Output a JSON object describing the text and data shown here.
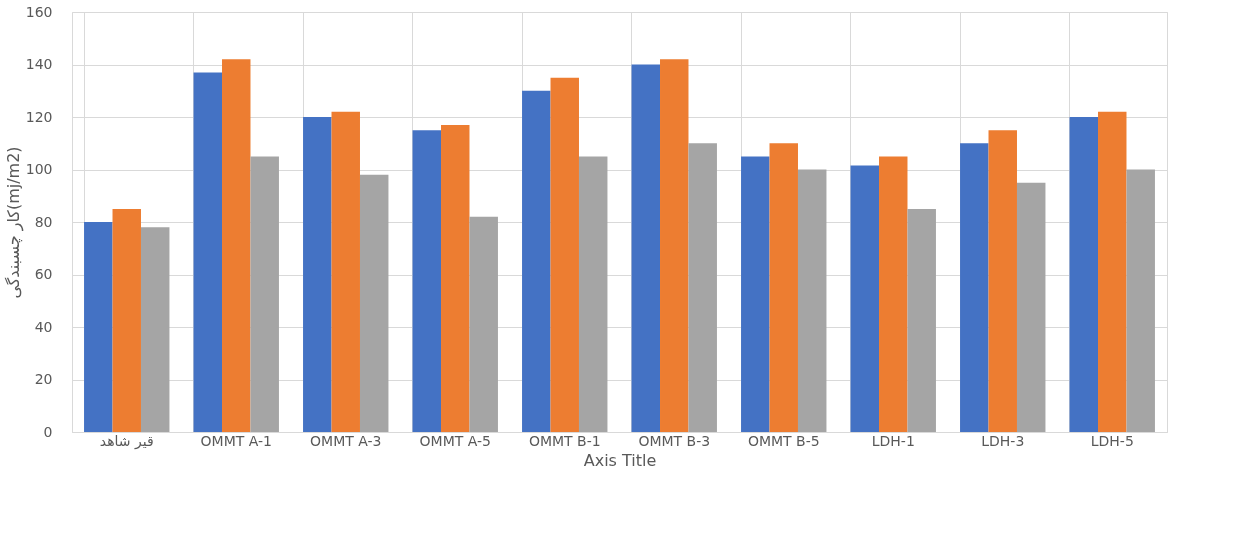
{
  "chart_data": {
    "type": "bar",
    "xlabel": "Axis Title",
    "ylabel": "کار چسبندگی(mj/m2)",
    "categories": [
      "قیر شاهد",
      "OMMT A-1",
      "OMMT A-3",
      "OMMT A-5",
      "OMMT B-1",
      "OMMT B-3",
      "OMMT B-5",
      "LDH-1",
      "LDH-3",
      "LDH-5"
    ],
    "series": [
      {
        "color": "#4472c4",
        "values": [
          80,
          137,
          120,
          115,
          130,
          140,
          105,
          101.5,
          110,
          120
        ]
      },
      {
        "color": "#ed7d31",
        "values": [
          85,
          142,
          122,
          117,
          135,
          142,
          110,
          105,
          115,
          122
        ]
      },
      {
        "color": "#a5a5a5",
        "values": [
          78,
          105,
          98,
          82,
          105,
          110,
          100,
          85,
          95,
          100
        ]
      }
    ],
    "ylim": [
      0,
      160
    ],
    "yticks": [
      0,
      20,
      40,
      60,
      80,
      100,
      120,
      140,
      160
    ],
    "grid": true,
    "legend": false
  }
}
